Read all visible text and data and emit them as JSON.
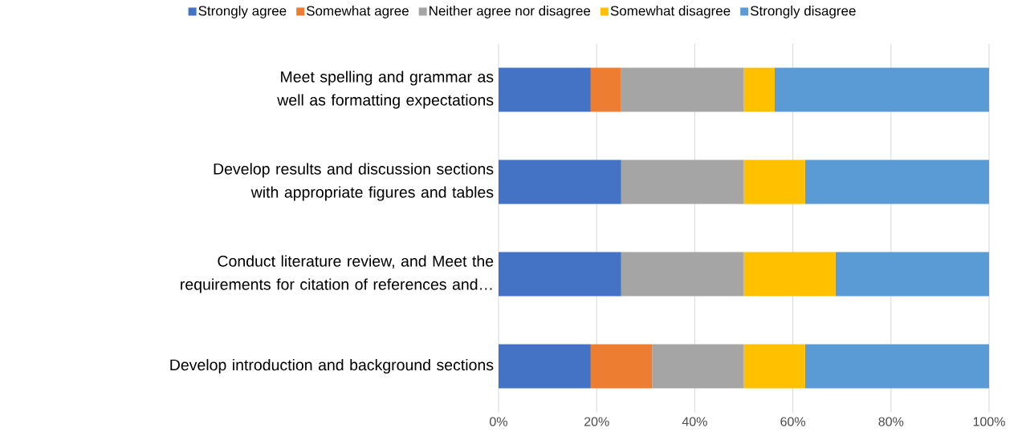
{
  "chart_data": {
    "type": "bar",
    "orientation": "horizontal",
    "stacked": true,
    "categories": [
      "Meet spelling and grammar as well as formatting expectations",
      "Develop results and discussion sections with appropriate figures and tables",
      "Conduct literature review, and Meet the requirements for citation of references and…",
      "Develop introduction and background sections"
    ],
    "series": [
      {
        "name": "Strongly agree",
        "color": "#4472c4",
        "values": [
          18.8,
          25,
          25,
          18.8
        ]
      },
      {
        "name": "Somewhat agree",
        "color": "#ed7d31",
        "values": [
          6.2,
          0,
          0,
          12.5
        ]
      },
      {
        "name": "Neither agree nor disagree",
        "color": "#a5a5a5",
        "values": [
          25,
          25,
          25,
          18.7
        ]
      },
      {
        "name": "Somewhat disagree",
        "color": "#ffc000",
        "values": [
          6.3,
          12.5,
          18.7,
          12.5
        ]
      },
      {
        "name": "Strongly disagree",
        "color": "#5b9bd5",
        "values": [
          43.7,
          37.5,
          31.3,
          37.5
        ]
      }
    ],
    "xlim": [
      0,
      100
    ],
    "xticks": [
      {
        "value": 0,
        "label": "0%"
      },
      {
        "value": 20,
        "label": "20%"
      },
      {
        "value": 40,
        "label": "40%"
      },
      {
        "value": 60,
        "label": "60%"
      },
      {
        "value": 80,
        "label": "80%"
      },
      {
        "value": 100,
        "label": "100%"
      }
    ],
    "grid": "x",
    "legend": "top"
  }
}
